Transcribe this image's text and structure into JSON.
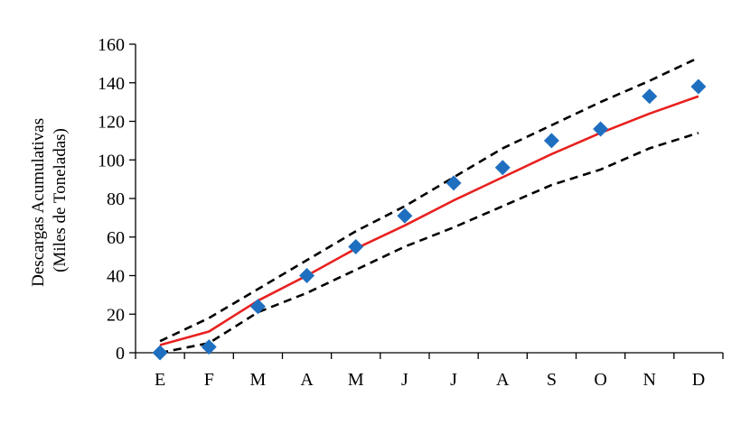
{
  "chart_data": {
    "type": "line",
    "categories": [
      "E",
      "F",
      "M",
      "A",
      "M",
      "J",
      "J",
      "A",
      "S",
      "O",
      "N",
      "D"
    ],
    "ylabel_lines": [
      "Descargas Acumulativas",
      "(Miles de Toneladas)"
    ],
    "xlabel": "",
    "title": "",
    "ylim": [
      0,
      160
    ],
    "yticks": [
      0,
      20,
      40,
      60,
      80,
      100,
      120,
      140,
      160
    ],
    "grid": false,
    "legend": "none",
    "series": [
      {
        "key": "upper",
        "style": "dashed",
        "color": "#000000",
        "values": [
          6,
          18,
          33,
          48,
          63,
          76,
          91,
          106,
          118,
          130,
          141,
          153
        ]
      },
      {
        "key": "mean",
        "style": "solid",
        "color": "#e8201f",
        "values": [
          4,
          11,
          27,
          40,
          54,
          66,
          79,
          91,
          103,
          114,
          124,
          133
        ]
      },
      {
        "key": "lower",
        "style": "dashed",
        "color": "#000000",
        "values": [
          0,
          5,
          21,
          31,
          43,
          55,
          65,
          76,
          87,
          95,
          106,
          114
        ]
      },
      {
        "key": "observed",
        "style": "marker-diamond",
        "color": "#1f6fc0",
        "values": [
          0,
          3,
          24,
          40,
          55,
          71,
          88,
          96,
          110,
          116,
          133,
          138
        ]
      }
    ]
  }
}
